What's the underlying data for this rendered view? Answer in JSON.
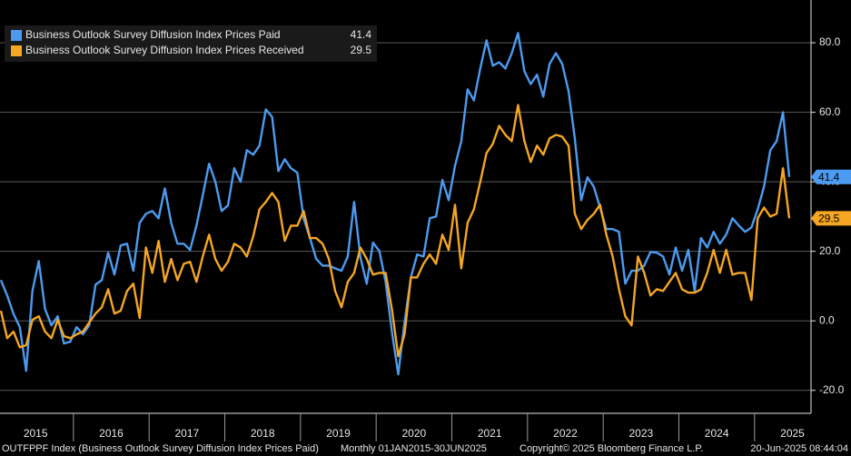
{
  "chart_data": {
    "type": "line",
    "x_axis_labels": [
      "2015",
      "2016",
      "2017",
      "2018",
      "2019",
      "2020",
      "2021",
      "2022",
      "2023",
      "2024",
      "2025"
    ],
    "series": [
      {
        "name": "Business Outlook Survey Diffusion Index Prices Paid",
        "color": "#4c9bf0",
        "values": [
          11.7,
          7.3,
          2,
          -1.8,
          -14.4,
          8.6,
          17.2,
          3.4,
          -1.3,
          1.3,
          -6.5,
          -6,
          -1.8,
          -3.9,
          -1.3,
          10.4,
          11.7,
          19.6,
          13.3,
          21.7,
          22.2,
          14.4,
          28.2,
          30.8,
          31.6,
          29.5,
          38.1,
          28.2,
          22.2,
          22.2,
          20.4,
          27.4,
          36,
          45.2,
          40,
          31.6,
          33.2,
          43.9,
          40,
          49.1,
          47.8,
          50.4,
          60.8,
          58.7,
          43.1,
          46.5,
          43.9,
          42.6,
          29.5,
          23.8,
          17.8,
          15.9,
          15.9,
          15.1,
          14.4,
          18.5,
          34.2,
          18.3,
          10.7,
          22.5,
          20.1,
          11.2,
          -3.1,
          -15.4,
          -0.5,
          12.5,
          19.1,
          18.5,
          29.5,
          30,
          40.5,
          34.7,
          44.6,
          51.7,
          66.6,
          63.4,
          72.6,
          80.7,
          73.4,
          74.4,
          72.6,
          77,
          82.8,
          71.8,
          68.1,
          70.8,
          64.5,
          73.9,
          77,
          73.9,
          66.1,
          52.5,
          34.7,
          41.3,
          38.6,
          32.6,
          26.4,
          26.4,
          25.6,
          10.7,
          14.4,
          14.4,
          15.9,
          19.8,
          19.6,
          18.5,
          13.3,
          21.1,
          14.4,
          20.4,
          8.6,
          23.8,
          21.1,
          25.6,
          22.2,
          24.8,
          29.5,
          27.4,
          25.6,
          26.9,
          32.1,
          38.6,
          49.1,
          51.7,
          60,
          41.4
        ]
      },
      {
        "name": "Business Outlook Survey Diffusion Index Prices Received",
        "color": "#f5a623",
        "values": [
          2.9,
          -5,
          -3.1,
          -7.6,
          -7,
          0.3,
          1.3,
          -3.1,
          -5,
          0.3,
          -4.4,
          -5,
          -3.9,
          -3.1,
          -0.5,
          2.1,
          3.9,
          9.1,
          2.1,
          2.9,
          8.6,
          10.7,
          0.8,
          21.1,
          13.8,
          23,
          11.2,
          17.8,
          11.7,
          16.4,
          17,
          11.2,
          18.5,
          24.8,
          17.8,
          14.4,
          17,
          22.2,
          21.1,
          18.5,
          24.3,
          32.1,
          34.2,
          36.8,
          34.2,
          23,
          27.4,
          27.4,
          31.6,
          23.8,
          23.8,
          22.2,
          17.8,
          8.6,
          3.9,
          11.2,
          13.8,
          21.1,
          17.8,
          13.3,
          13.8,
          13.8,
          3.4,
          -10.2,
          -3.9,
          12.5,
          12.5,
          16.4,
          19.1,
          16.4,
          24.8,
          20.4,
          33.4,
          15.1,
          28.2,
          32.1,
          40,
          48.3,
          50.9,
          56.1,
          53.5,
          51.7,
          62.1,
          51.7,
          45.7,
          50.4,
          47.8,
          52.5,
          53.5,
          53,
          50.4,
          30.8,
          26.4,
          29,
          30.8,
          33.4,
          24.8,
          18.5,
          9.1,
          1.3,
          -1.3,
          18.5,
          13.8,
          7.3,
          9.1,
          8.6,
          11.2,
          13.8,
          9.1,
          8.1,
          8.1,
          9.1,
          13.8,
          20.4,
          13.8,
          20.4,
          13.3,
          13.8,
          13.8,
          6,
          29.5,
          32.6,
          30,
          30.8,
          43.9,
          29.5
        ]
      }
    ],
    "ylim": [
      -26.6,
      92.3
    ],
    "yticks": [
      {
        "value": -20,
        "label": "-20.0"
      },
      {
        "value": 0,
        "label": "0.0"
      },
      {
        "value": 20,
        "label": "20.0"
      },
      {
        "value": 40,
        "label": "40.0"
      },
      {
        "value": 60,
        "label": "60.0"
      },
      {
        "value": 80,
        "label": "80.0"
      }
    ],
    "grid": true,
    "legend": "top-left",
    "footer": [
      "OUTFPPF Index (Business Outlook Survey Diffusion Index Prices Paid)",
      "Monthly 01JAN2015-30JUN2025",
      "Copyright© 2025 Bloomberg Finance L.P.",
      "20-Jun-2025 08:44:04"
    ]
  }
}
